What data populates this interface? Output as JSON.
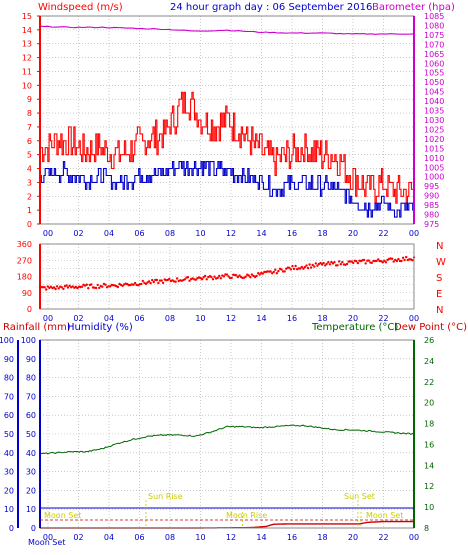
{
  "header": {
    "left_label": "Windspeed (m/s)",
    "center_label": "24 hour graph day : 06 September 2016",
    "right_label": "Barometer (hpa)"
  },
  "lower_header": {
    "rainfall_label": "Rainfall (mm)",
    "humidity_label": "Humidity (%)",
    "temperature_label": "Temperature (°C)",
    "dewpoint_label": "Dew Point (°C)"
  },
  "direction_labels": [
    "N",
    "W",
    "S",
    "E",
    "N"
  ],
  "astro": {
    "sun_rise": "Sun Rise",
    "sun_set": "Sun Set",
    "moon_rise": "Moon Rise",
    "moon_set": "Moon Set",
    "moon_set_left": "Moon Set",
    "moon_set_axis": "Moon Set",
    "sun_rise_hour": 6.8,
    "sun_set_hour": 20.4,
    "moon_rise_hour": 13.0,
    "moon_set_hour": 20.6
  },
  "colors": {
    "windspeed": "#ff0000",
    "gust": "#ff0000",
    "wind_avg": "#0000cc",
    "barometer": "#cc00cc",
    "direction": "#ff0000",
    "rainfall": "#cc0000",
    "humidity": "#0000cc",
    "temperature": "#006600",
    "dewpoint": "#cc0000",
    "grid": "#aaaaaa"
  },
  "chart_data": [
    {
      "type": "line",
      "panel": "wind_barometer",
      "x_ticks": [
        "00",
        "02",
        "04",
        "06",
        "08",
        "10",
        "12",
        "14",
        "16",
        "18",
        "20",
        "22",
        "00"
      ],
      "ylabel": "Windspeed (m/s)",
      "ylim": [
        0,
        15
      ],
      "y_ticks": [
        0,
        1,
        2,
        3,
        4,
        5,
        6,
        7,
        8,
        9,
        10,
        11,
        12,
        13,
        14,
        15
      ],
      "y2label": "Barometer (hpa)",
      "y2lim": [
        975,
        1085
      ],
      "y2_ticks": [
        975,
        980,
        985,
        990,
        995,
        1000,
        1005,
        1010,
        1015,
        1020,
        1025,
        1030,
        1035,
        1040,
        1045,
        1050,
        1055,
        1060,
        1065,
        1070,
        1075,
        1080,
        1085
      ],
      "grid": true,
      "series": [
        {
          "name": "Windspeed (m/s)",
          "x": [
            0,
            1,
            2,
            3,
            4,
            5,
            6,
            7,
            8,
            8.5,
            9,
            9.5,
            10,
            11,
            12,
            13,
            14,
            15,
            16,
            17,
            18,
            19,
            20,
            21,
            22,
            23,
            24
          ],
          "values": [
            5.5,
            6.0,
            5.8,
            5.2,
            5.5,
            5.0,
            5.5,
            6.2,
            6.5,
            7.5,
            8.5,
            9.0,
            8.0,
            7.0,
            7.5,
            6.5,
            5.5,
            4.5,
            5.0,
            5.5,
            5.0,
            4.8,
            3.5,
            2.5,
            2.8,
            2.2,
            2.5
          ]
        },
        {
          "name": "Wind average",
          "x": [
            0,
            1,
            2,
            3,
            4,
            5,
            6,
            7,
            8,
            9,
            10,
            11,
            12,
            13,
            14,
            15,
            16,
            17,
            18,
            19,
            20,
            21,
            22,
            23,
            24
          ],
          "values": [
            3.5,
            3.8,
            3.6,
            3.2,
            3.4,
            3.0,
            3.3,
            3.6,
            3.8,
            4.2,
            4.3,
            4.0,
            3.8,
            3.6,
            3.2,
            2.6,
            2.8,
            3.0,
            2.8,
            2.5,
            1.8,
            1.2,
            1.4,
            1.0,
            1.2
          ]
        },
        {
          "name": "Barometer (hpa)",
          "axis": "right",
          "x": [
            0,
            2,
            4,
            6,
            8,
            10,
            12,
            14,
            16,
            18,
            20,
            22,
            24
          ],
          "values": [
            1079.5,
            1079.0,
            1079.0,
            1078.5,
            1078.0,
            1077.0,
            1077.5,
            1076.5,
            1076.0,
            1076.0,
            1075.5,
            1075.5,
            1075.5
          ]
        }
      ]
    },
    {
      "type": "scatter",
      "panel": "wind_direction",
      "x_ticks": [
        "00",
        "02",
        "04",
        "06",
        "08",
        "10",
        "12",
        "14",
        "16",
        "18",
        "20",
        "22",
        "00"
      ],
      "ylim": [
        0,
        360
      ],
      "y_ticks": [
        0,
        45,
        90,
        135,
        180,
        225,
        270,
        315,
        360
      ],
      "grid": true,
      "series": [
        {
          "name": "Wind direction",
          "x": [
            0,
            1,
            2,
            3,
            4,
            5,
            6,
            7,
            8,
            9,
            10,
            11,
            12,
            13,
            14,
            15,
            16,
            17,
            18,
            19,
            20,
            21,
            22,
            23,
            24
          ],
          "values": [
            115,
            118,
            122,
            125,
            128,
            132,
            140,
            148,
            155,
            162,
            170,
            175,
            182,
            178,
            190,
            205,
            225,
            235,
            245,
            252,
            258,
            262,
            268,
            274,
            282
          ]
        }
      ]
    },
    {
      "type": "line",
      "panel": "rain_humidity_temperature",
      "x_ticks": [
        "00",
        "02",
        "04",
        "06",
        "08",
        "10",
        "12",
        "14",
        "16",
        "18",
        "20",
        "22",
        "00"
      ],
      "ylim": [
        0,
        100
      ],
      "y_ticks": [
        0,
        10,
        20,
        30,
        40,
        50,
        60,
        70,
        80,
        90,
        100
      ],
      "y2lim": [
        8,
        26
      ],
      "y2_ticks": [
        8,
        10,
        12,
        14,
        16,
        18,
        20,
        22,
        24,
        26
      ],
      "grid": true,
      "series": [
        {
          "name": "Temperature (°C)",
          "axis": "right",
          "x": [
            0,
            1,
            2,
            3,
            4,
            5,
            6,
            7,
            8,
            9,
            10,
            11,
            12,
            13,
            14,
            15,
            16,
            17,
            18,
            19,
            20,
            21,
            22,
            23,
            24
          ],
          "values": [
            15.1,
            15.2,
            15.3,
            15.3,
            15.6,
            16.1,
            16.5,
            16.8,
            16.9,
            16.9,
            16.8,
            17.2,
            17.7,
            17.7,
            17.6,
            17.7,
            17.8,
            17.8,
            17.6,
            17.4,
            17.4,
            17.3,
            17.2,
            17.1,
            17.0
          ]
        },
        {
          "name": "Rainfall (mm)",
          "x": [
            0,
            6,
            10,
            13.5,
            14.5,
            15,
            16,
            18,
            20.5,
            21,
            22,
            24
          ],
          "values": [
            0,
            0,
            0,
            0.2,
            0.8,
            2.0,
            2.2,
            2.2,
            2.2,
            3.0,
            3.4,
            3.4
          ]
        },
        {
          "name": "Rainfall (mm) base",
          "x": [
            0,
            24
          ],
          "values": [
            0,
            0
          ]
        }
      ]
    }
  ]
}
